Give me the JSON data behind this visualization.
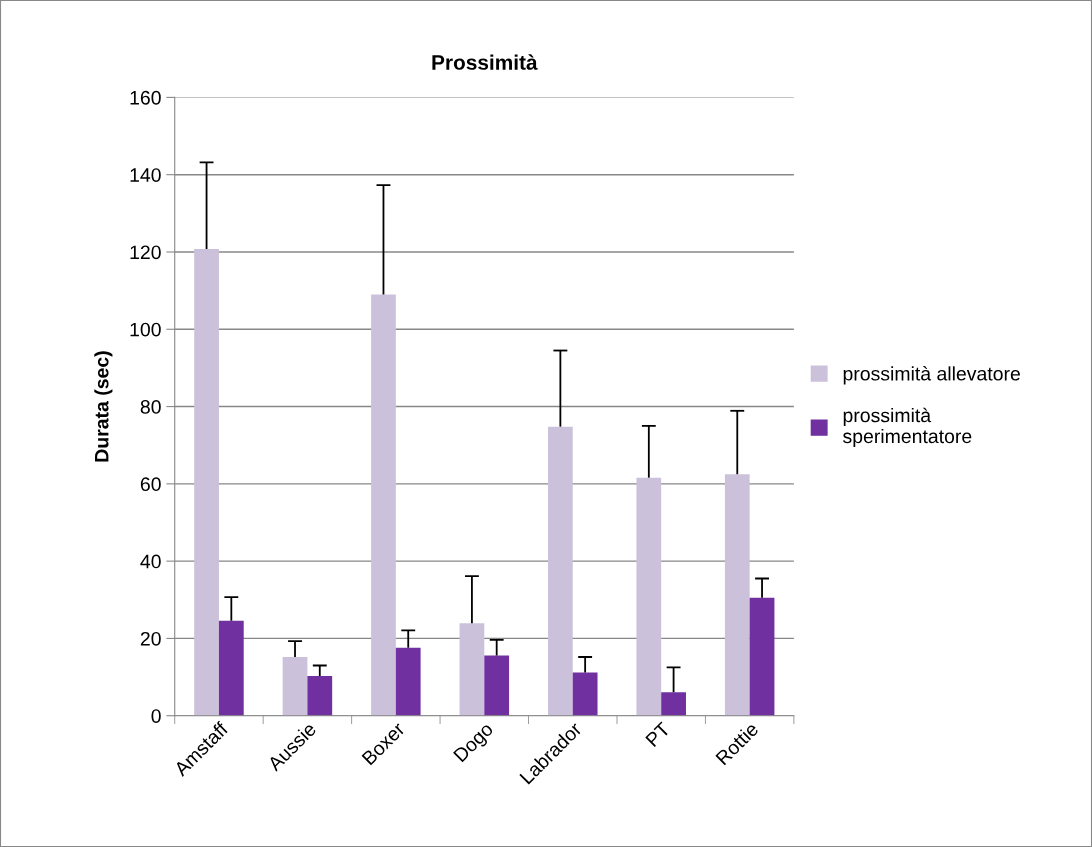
{
  "chart_data": {
    "type": "bar",
    "title": "Prossimità",
    "ylabel": "Durata (sec)",
    "categories": [
      "Amstaff",
      "Aussie",
      "Boxer",
      "Dogo",
      "Labrador",
      "PT",
      "Rottie"
    ],
    "series": [
      {
        "name": "prossimità allevatore",
        "color": "#ccc1da",
        "values": [
          120.8,
          15.2,
          109.0,
          23.9,
          74.8,
          61.6,
          62.5
        ],
        "errors": [
          [
            120.8,
            143.2
          ],
          [
            15.2,
            19.3
          ],
          [
            109.0,
            137.3
          ],
          [
            23.9,
            36.1
          ],
          [
            74.8,
            94.5
          ],
          [
            61.6,
            75.0
          ],
          [
            62.5,
            78.9
          ]
        ]
      },
      {
        "name": "prossimità\nsperimentatore",
        "color": "#7030a0",
        "values": [
          24.6,
          10.3,
          17.6,
          15.6,
          11.2,
          6.1,
          30.5
        ],
        "errors": [
          [
            24.6,
            30.7
          ],
          [
            10.3,
            13.0
          ],
          [
            17.6,
            22.1
          ],
          [
            15.6,
            19.6
          ],
          [
            11.2,
            15.2
          ],
          [
            6.1,
            12.5
          ],
          [
            30.5,
            35.5
          ]
        ]
      }
    ],
    "ylim": [
      0,
      160
    ],
    "yticks": [
      0,
      20,
      40,
      60,
      80,
      100,
      120,
      140,
      160
    ],
    "grid": "y",
    "legend": "right"
  }
}
